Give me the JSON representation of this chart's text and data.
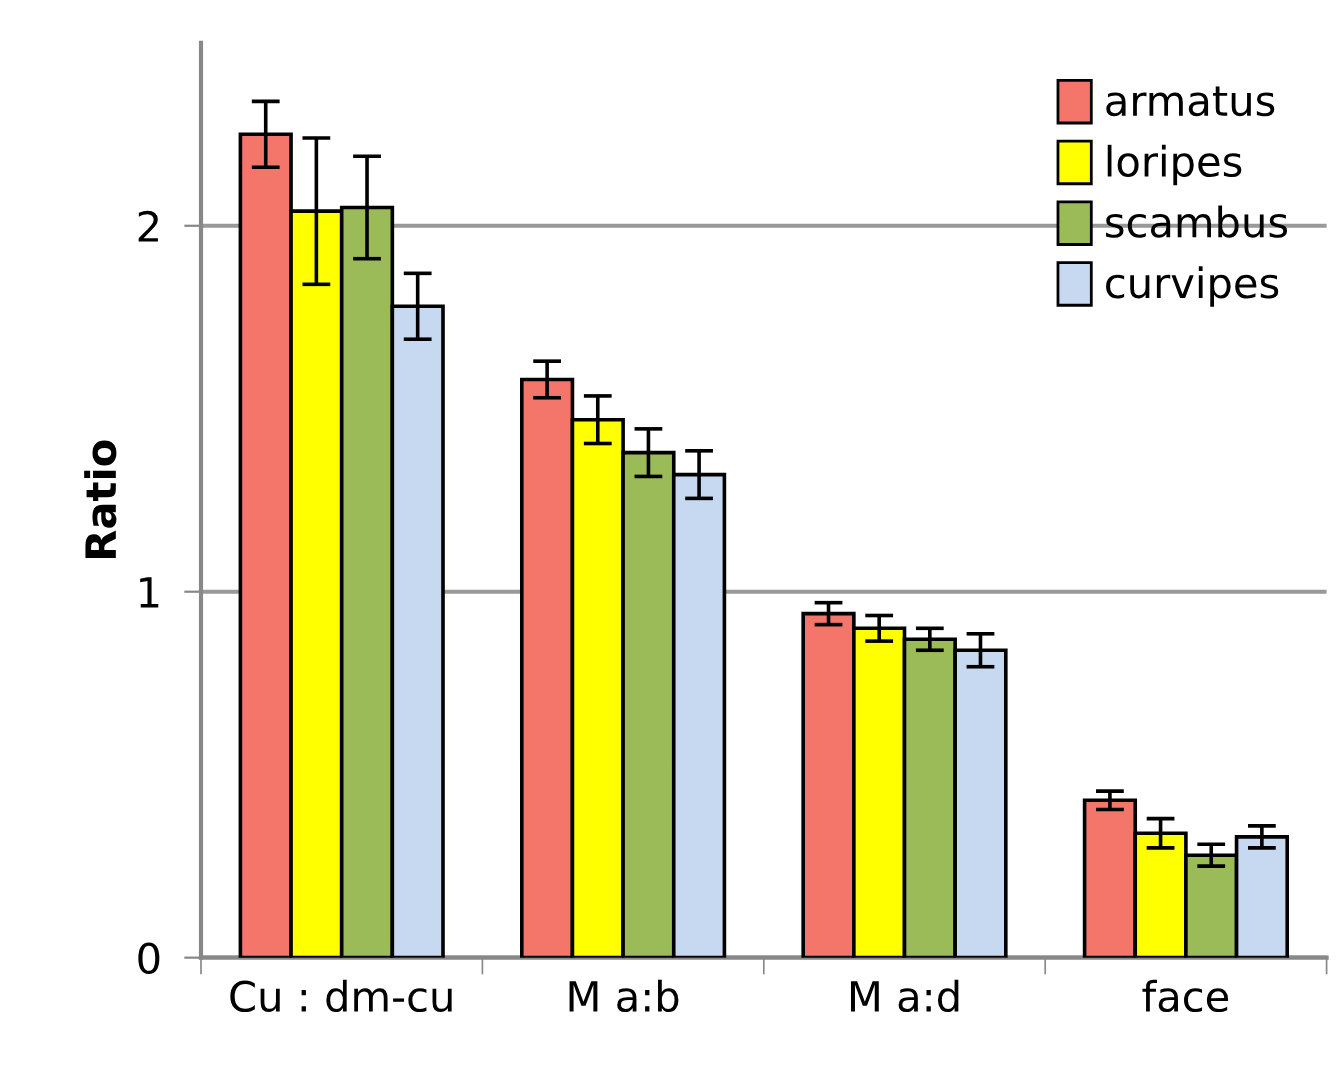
{
  "chart_data": {
    "type": "bar",
    "ylabel": "Ratio",
    "categories": [
      "Cu : dm-cu",
      "M a:b",
      "M a:d",
      "face"
    ],
    "series": [
      {
        "name": "armatus",
        "color": "#f4766a",
        "values": [
          2.25,
          1.58,
          0.94,
          0.43
        ],
        "errors": [
          0.09,
          0.05,
          0.03,
          0.025
        ]
      },
      {
        "name": "loripes",
        "color": "#ffff00",
        "values": [
          2.04,
          1.47,
          0.9,
          0.34
        ],
        "errors": [
          0.2,
          0.065,
          0.035,
          0.04
        ]
      },
      {
        "name": "scambus",
        "color": "#9bbb59",
        "values": [
          2.05,
          1.38,
          0.87,
          0.28
        ],
        "errors": [
          0.14,
          0.065,
          0.03,
          0.03
        ]
      },
      {
        "name": "curvipes",
        "color": "#c6d9f1",
        "values": [
          1.78,
          1.32,
          0.84,
          0.33
        ],
        "errors": [
          0.09,
          0.065,
          0.045,
          0.03
        ]
      }
    ],
    "ylim": [
      0,
      2.5
    ],
    "yticks": [
      0,
      1,
      2
    ],
    "grid": "y",
    "legend": "top right"
  }
}
